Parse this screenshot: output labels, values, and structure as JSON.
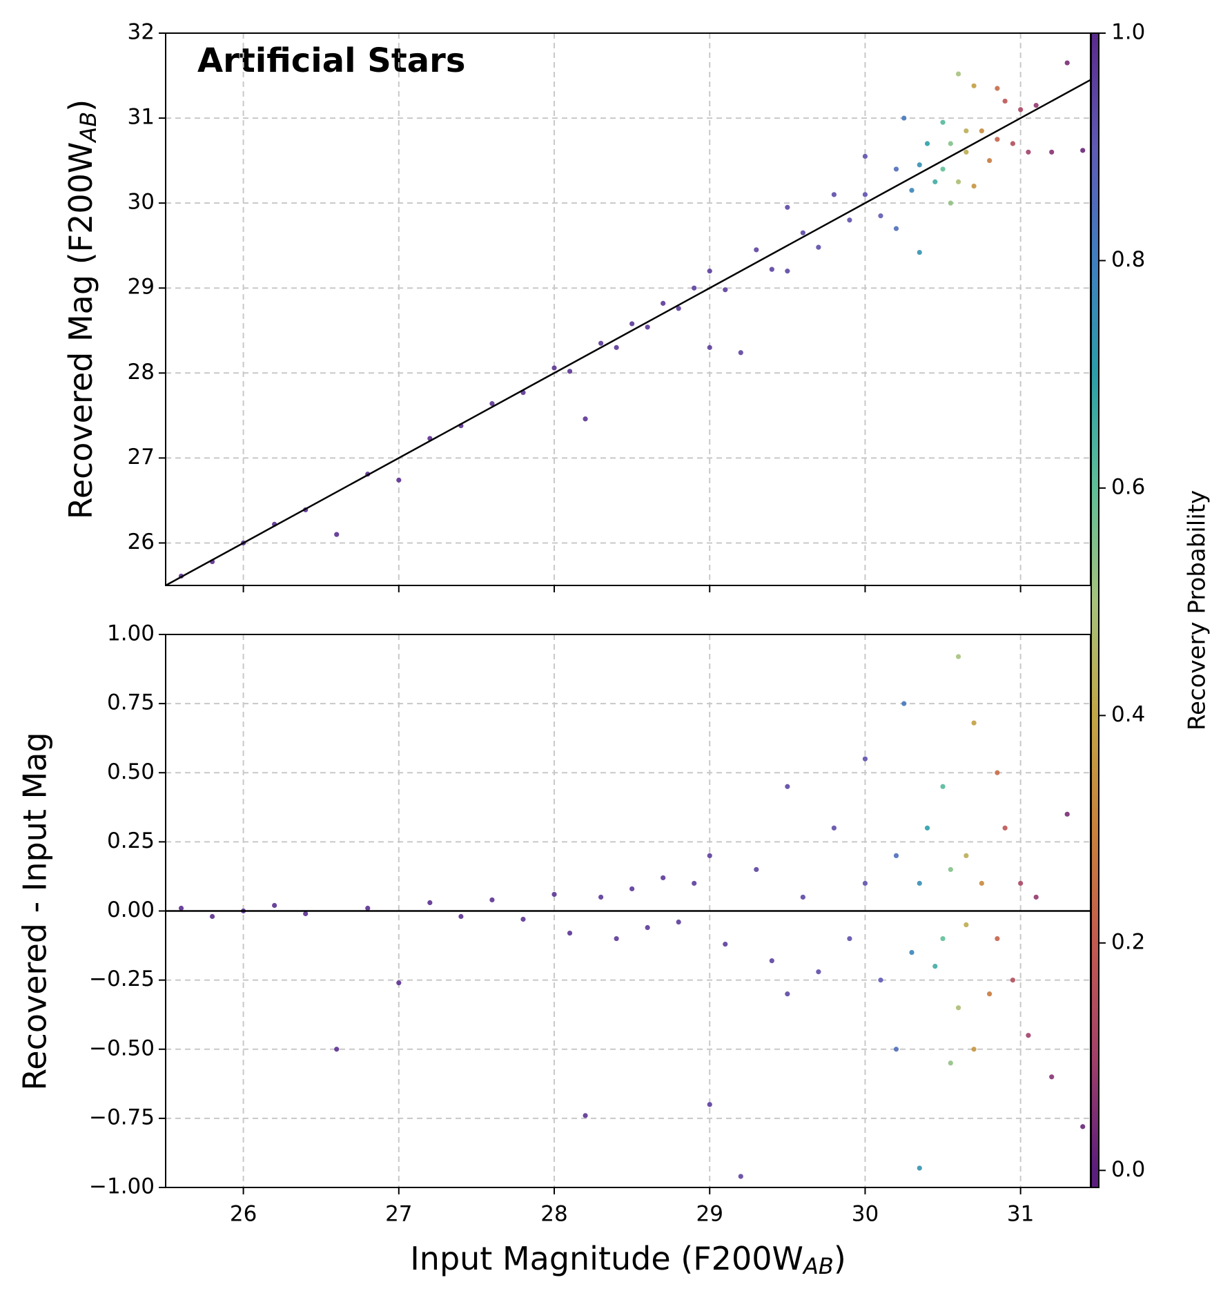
{
  "annotation": "Artificial Stars",
  "xlabel": "Input Magnitude (F200W",
  "xlabel_sub": "AB",
  "xlabel_end": ")",
  "colorbar": {
    "label": "Recovery Probability",
    "ylim": [
      -0.015,
      1.0
    ],
    "yticks": [
      {
        "value": 0.0,
        "label": "0.0"
      },
      0.2,
      0.4,
      0.6,
      0.8,
      {
        "value": 1.0,
        "label": "1.0"
      }
    ],
    "colormap": [
      "#5a1e7c",
      "#a2406a",
      "#c45a4e",
      "#c8823a",
      "#c2a645",
      "#a6c27c",
      "#5fbf98",
      "#2c9ea8",
      "#3f7fbf",
      "#5f5ab4",
      "#5a2a8c"
    ]
  },
  "chart_data": [
    {
      "type": "scatter",
      "ylabel": "Recovered Mag (F200W",
      "ylabel_sub": "AB",
      "ylabel_end": ")",
      "xlim": [
        25.5,
        31.45
      ],
      "ylim": [
        25.5,
        32
      ],
      "xticks": [
        26,
        27,
        28,
        29,
        30,
        31
      ],
      "yticks": [
        26,
        27,
        28,
        29,
        30,
        31,
        32
      ],
      "grid": true,
      "line": {
        "x": [
          25.5,
          31.45
        ],
        "y": [
          25.5,
          31.45
        ],
        "color": "#000000"
      },
      "x": [
        25.6,
        25.8,
        26.0,
        26.2,
        26.4,
        26.6,
        26.8,
        27.0,
        27.2,
        27.4,
        27.6,
        27.8,
        28.0,
        28.1,
        28.2,
        28.3,
        28.4,
        28.5,
        28.6,
        28.7,
        28.8,
        28.9,
        29.0,
        29.0,
        29.1,
        29.2,
        29.3,
        29.4,
        29.5,
        29.5,
        29.6,
        29.7,
        29.8,
        29.9,
        30.0,
        30.0,
        30.1,
        30.2,
        30.2,
        30.25,
        30.3,
        30.35,
        30.35,
        30.4,
        30.45,
        30.5,
        30.5,
        30.55,
        30.55,
        30.6,
        30.6,
        30.65,
        30.65,
        30.7,
        30.7,
        30.75,
        30.8,
        30.85,
        30.85,
        30.9,
        30.95,
        31.0,
        31.05,
        31.1,
        31.2,
        31.3,
        31.4
      ],
      "values": [
        25.61,
        25.78,
        26.0,
        26.22,
        26.39,
        26.1,
        26.81,
        26.74,
        27.23,
        27.38,
        27.64,
        27.77,
        28.06,
        28.02,
        27.46,
        28.35,
        28.3,
        28.58,
        28.54,
        28.82,
        28.76,
        29.0,
        28.3,
        29.2,
        28.98,
        28.24,
        29.45,
        29.22,
        29.95,
        29.2,
        29.65,
        29.48,
        30.1,
        29.8,
        30.55,
        30.1,
        29.85,
        30.4,
        29.7,
        31.0,
        30.15,
        30.45,
        29.42,
        30.7,
        30.25,
        30.95,
        30.4,
        30.7,
        30.0,
        31.52,
        30.25,
        30.85,
        30.6,
        31.38,
        30.2,
        30.85,
        30.5,
        31.35,
        30.75,
        31.2,
        30.7,
        31.1,
        30.6,
        31.15,
        30.6,
        31.65,
        30.62
      ],
      "c": [
        0.99,
        0.99,
        0.99,
        0.99,
        0.99,
        0.99,
        0.99,
        0.99,
        0.99,
        0.99,
        0.98,
        0.98,
        0.98,
        0.98,
        0.98,
        0.97,
        0.97,
        0.97,
        0.97,
        0.97,
        0.96,
        0.96,
        0.96,
        0.96,
        0.96,
        0.95,
        0.95,
        0.95,
        0.94,
        0.94,
        0.94,
        0.93,
        0.93,
        0.92,
        0.92,
        0.92,
        0.9,
        0.85,
        0.85,
        0.82,
        0.78,
        0.75,
        0.74,
        0.7,
        0.66,
        0.62,
        0.6,
        0.55,
        0.53,
        0.5,
        0.48,
        0.43,
        0.42,
        0.38,
        0.35,
        0.32,
        0.28,
        0.24,
        0.22,
        0.18,
        0.15,
        0.12,
        0.1,
        0.08,
        0.06,
        0.04,
        0.02
      ]
    },
    {
      "type": "scatter",
      "ylabel": "Recovered - Input Mag",
      "xlim": [
        25.5,
        31.45
      ],
      "ylim": [
        -1,
        1
      ],
      "xticks": [
        26,
        27,
        28,
        29,
        30,
        31
      ],
      "yticks": [
        {
          "value": -1,
          "label": "−1.00"
        },
        {
          "value": -0.75,
          "label": "−0.75"
        },
        {
          "value": -0.5,
          "label": "−0.50"
        },
        {
          "value": -0.25,
          "label": "−0.25"
        },
        {
          "value": 0,
          "label": "0.00"
        },
        {
          "value": 0.25,
          "label": "0.25"
        },
        {
          "value": 0.5,
          "label": "0.50"
        },
        {
          "value": 0.75,
          "label": "0.75"
        },
        {
          "value": 1,
          "label": "1.00"
        }
      ],
      "grid": true,
      "line": {
        "x": [
          25.5,
          31.45
        ],
        "y": [
          0,
          0
        ],
        "color": "#000000"
      },
      "x": [
        25.6,
        25.8,
        26.0,
        26.2,
        26.4,
        26.6,
        26.8,
        27.0,
        27.2,
        27.4,
        27.6,
        27.8,
        28.0,
        28.1,
        28.2,
        28.3,
        28.4,
        28.5,
        28.6,
        28.7,
        28.8,
        28.9,
        29.0,
        29.0,
        29.1,
        29.2,
        29.3,
        29.4,
        29.5,
        29.5,
        29.6,
        29.7,
        29.8,
        29.9,
        30.0,
        30.0,
        30.1,
        30.2,
        30.2,
        30.25,
        30.3,
        30.35,
        30.35,
        30.4,
        30.45,
        30.5,
        30.5,
        30.55,
        30.55,
        30.6,
        30.6,
        30.65,
        30.65,
        30.7,
        30.7,
        30.75,
        30.8,
        30.85,
        30.85,
        30.9,
        30.95,
        31.0,
        31.05,
        31.1,
        31.2,
        31.3,
        31.4
      ],
      "values": [
        0.01,
        -0.02,
        0.0,
        0.02,
        -0.01,
        -0.5,
        0.01,
        -0.26,
        0.03,
        -0.02,
        0.04,
        -0.03,
        0.06,
        -0.08,
        -0.74,
        0.05,
        -0.1,
        0.08,
        -0.06,
        0.12,
        -0.04,
        0.1,
        -0.7,
        0.2,
        -0.12,
        -0.96,
        0.15,
        -0.18,
        0.45,
        -0.3,
        0.05,
        -0.22,
        0.3,
        -0.1,
        0.55,
        0.1,
        -0.25,
        0.2,
        -0.5,
        0.75,
        -0.15,
        0.1,
        -0.93,
        0.3,
        -0.2,
        0.45,
        -0.1,
        0.15,
        -0.55,
        0.92,
        -0.35,
        0.2,
        -0.05,
        0.68,
        -0.5,
        0.1,
        -0.3,
        0.5,
        -0.1,
        0.3,
        -0.25,
        0.1,
        -0.45,
        0.05,
        -0.6,
        0.35,
        -0.78
      ],
      "c": [
        0.99,
        0.99,
        0.99,
        0.99,
        0.99,
        0.99,
        0.99,
        0.99,
        0.99,
        0.99,
        0.98,
        0.98,
        0.98,
        0.98,
        0.98,
        0.97,
        0.97,
        0.97,
        0.97,
        0.97,
        0.96,
        0.96,
        0.96,
        0.96,
        0.96,
        0.95,
        0.95,
        0.95,
        0.94,
        0.94,
        0.94,
        0.93,
        0.93,
        0.92,
        0.92,
        0.92,
        0.9,
        0.85,
        0.85,
        0.82,
        0.78,
        0.75,
        0.74,
        0.7,
        0.66,
        0.62,
        0.6,
        0.55,
        0.53,
        0.5,
        0.48,
        0.43,
        0.42,
        0.38,
        0.35,
        0.32,
        0.28,
        0.24,
        0.22,
        0.18,
        0.15,
        0.12,
        0.1,
        0.08,
        0.06,
        0.04,
        0.02
      ]
    }
  ]
}
